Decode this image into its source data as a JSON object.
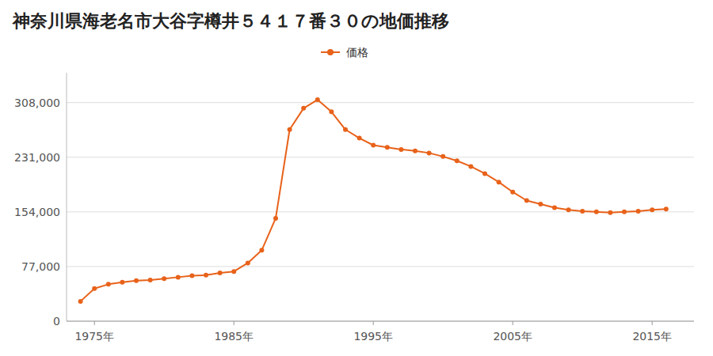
{
  "chart_data": {
    "type": "line",
    "title": "神奈川県海老名市大谷字樽井５４１７番３０の地価推移",
    "x": [
      1974,
      1975,
      1976,
      1977,
      1978,
      1979,
      1980,
      1981,
      1982,
      1983,
      1984,
      1985,
      1986,
      1987,
      1988,
      1989,
      1990,
      1991,
      1992,
      1993,
      1994,
      1995,
      1996,
      1997,
      1998,
      1999,
      2000,
      2001,
      2002,
      2003,
      2004,
      2005,
      2006,
      2007,
      2008,
      2009,
      2010,
      2011,
      2012,
      2013,
      2014,
      2015,
      2016
    ],
    "series": [
      {
        "name": "価格",
        "color": "#E8621A",
        "marker": "circle",
        "values": [
          28000,
          46000,
          52000,
          55000,
          57000,
          58000,
          60000,
          62000,
          64000,
          65000,
          68000,
          70000,
          82000,
          100000,
          145000,
          270000,
          300000,
          312000,
          295000,
          270000,
          258000,
          248000,
          245000,
          242000,
          240000,
          237000,
          232000,
          226000,
          218000,
          208000,
          196000,
          182000,
          170000,
          165000,
          160000,
          157000,
          155000,
          154000,
          153000,
          154000,
          155000,
          157000,
          158000
        ]
      }
    ],
    "xlim": [
      1973,
      2018
    ],
    "xticks": [
      {
        "value": 1975,
        "label": "1975年"
      },
      {
        "value": 1985,
        "label": "1985年"
      },
      {
        "value": 1995,
        "label": "1995年"
      },
      {
        "value": 2005,
        "label": "2005年"
      },
      {
        "value": 2015,
        "label": "2015年"
      }
    ],
    "ylim": [
      0,
      350000
    ],
    "yticks": [
      0,
      {
        "value": 77000,
        "label": "77,000"
      },
      {
        "value": 154000,
        "label": "154,000"
      },
      {
        "value": 231000,
        "label": "231,000"
      },
      {
        "value": 308000,
        "label": "308,000"
      }
    ],
    "grid": true,
    "legend": "top"
  }
}
